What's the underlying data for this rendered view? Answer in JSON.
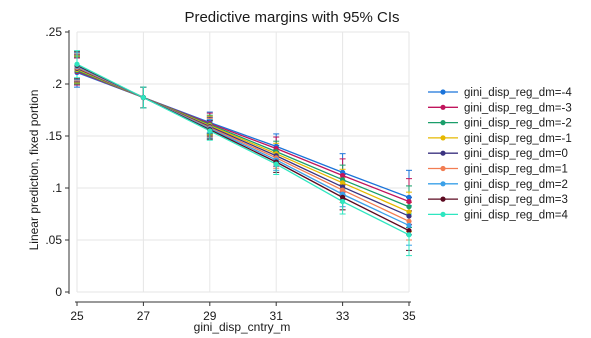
{
  "chart_data": {
    "type": "line",
    "title": "Predictive margins with 95% CIs",
    "xlabel": "gini_disp_cntry_m",
    "ylabel": "Linear prediction, fixed portion",
    "x": [
      25,
      27,
      29,
      31,
      33,
      35
    ],
    "xticks": [
      "25",
      "27",
      "29",
      "31",
      "33",
      "35"
    ],
    "yticks": [
      "0",
      ".05",
      ".1",
      ".15",
      ".2",
      ".25"
    ],
    "ylim": [
      0,
      0.25
    ],
    "xlim": [
      25,
      35
    ],
    "grid": true,
    "legend_position": "right",
    "series": [
      {
        "name": "gini_disp_reg_dm=-4",
        "color": "#1a73d9",
        "values": [
          0.211,
          0.187,
          0.163,
          0.14,
          0.115,
          0.091
        ],
        "ci_low": [
          0.197,
          0.177,
          0.153,
          0.128,
          0.097,
          0.065
        ],
        "ci_high": [
          0.225,
          0.197,
          0.173,
          0.152,
          0.133,
          0.117
        ]
      },
      {
        "name": "gini_disp_reg_dm=-3",
        "color": "#c0155c",
        "values": [
          0.212,
          0.187,
          0.162,
          0.138,
          0.112,
          0.087
        ],
        "ci_low": [
          0.199,
          0.177,
          0.152,
          0.127,
          0.096,
          0.065
        ],
        "ci_high": [
          0.225,
          0.197,
          0.172,
          0.149,
          0.128,
          0.109
        ]
      },
      {
        "name": "gini_disp_reg_dm=-2",
        "color": "#1a9e6a",
        "values": [
          0.213,
          0.187,
          0.161,
          0.135,
          0.108,
          0.082
        ],
        "ci_low": [
          0.2,
          0.177,
          0.152,
          0.125,
          0.094,
          0.062
        ],
        "ci_high": [
          0.226,
          0.197,
          0.17,
          0.145,
          0.122,
          0.102
        ]
      },
      {
        "name": "gini_disp_reg_dm=-1",
        "color": "#e6b800",
        "values": [
          0.214,
          0.187,
          0.16,
          0.133,
          0.105,
          0.077
        ],
        "ci_low": [
          0.201,
          0.177,
          0.151,
          0.123,
          0.092,
          0.058
        ],
        "ci_high": [
          0.227,
          0.197,
          0.169,
          0.143,
          0.118,
          0.096
        ]
      },
      {
        "name": "gini_disp_reg_dm=0",
        "color": "#3b3380",
        "values": [
          0.215,
          0.187,
          0.159,
          0.131,
          0.101,
          0.073
        ],
        "ci_low": [
          0.202,
          0.177,
          0.15,
          0.121,
          0.089,
          0.055
        ],
        "ci_high": [
          0.228,
          0.197,
          0.168,
          0.141,
          0.113,
          0.091
        ]
      },
      {
        "name": "gini_disp_reg_dm=1",
        "color": "#f27d52",
        "values": [
          0.216,
          0.187,
          0.158,
          0.129,
          0.098,
          0.068
        ],
        "ci_low": [
          0.203,
          0.177,
          0.149,
          0.119,
          0.086,
          0.05
        ],
        "ci_high": [
          0.229,
          0.197,
          0.167,
          0.139,
          0.11,
          0.086
        ]
      },
      {
        "name": "gini_disp_reg_dm=2",
        "color": "#3aa0e8",
        "values": [
          0.217,
          0.187,
          0.157,
          0.127,
          0.094,
          0.064
        ],
        "ci_low": [
          0.204,
          0.177,
          0.148,
          0.117,
          0.082,
          0.045
        ],
        "ci_high": [
          0.23,
          0.197,
          0.166,
          0.137,
          0.106,
          0.083
        ]
      },
      {
        "name": "gini_disp_reg_dm=3",
        "color": "#5c0a20",
        "values": [
          0.218,
          0.187,
          0.156,
          0.125,
          0.091,
          0.059
        ],
        "ci_low": [
          0.205,
          0.177,
          0.147,
          0.115,
          0.079,
          0.04
        ],
        "ci_high": [
          0.231,
          0.197,
          0.165,
          0.135,
          0.103,
          0.078
        ]
      },
      {
        "name": "gini_disp_reg_dm=4",
        "color": "#2ee6c0",
        "values": [
          0.219,
          0.187,
          0.155,
          0.123,
          0.087,
          0.055
        ],
        "ci_low": [
          0.206,
          0.177,
          0.146,
          0.113,
          0.075,
          0.035
        ],
        "ci_high": [
          0.232,
          0.197,
          0.164,
          0.133,
          0.099,
          0.075
        ]
      }
    ]
  }
}
